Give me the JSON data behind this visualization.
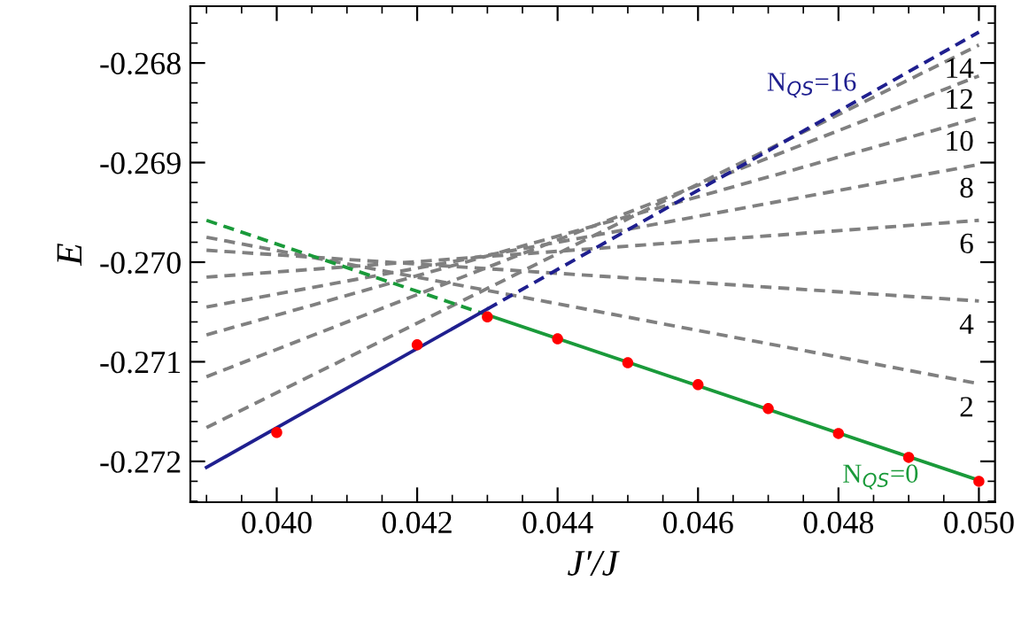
{
  "chart_data": {
    "type": "line",
    "xlabel": "J′/J",
    "ylabel": "E",
    "xlim": [
      0.03877,
      0.05023
    ],
    "ylim": [
      -0.27241,
      -0.26743
    ],
    "xticks": [
      {
        "value": 0.04,
        "label": "0.040"
      },
      {
        "value": 0.042,
        "label": "0.042"
      },
      {
        "value": 0.044,
        "label": "0.044"
      },
      {
        "value": 0.046,
        "label": "0.046"
      },
      {
        "value": 0.048,
        "label": "0.048"
      },
      {
        "value": 0.05,
        "label": "0.050"
      }
    ],
    "yticks": [
      {
        "value": -0.268,
        "label": "-0.268"
      },
      {
        "value": -0.269,
        "label": "-0.269"
      },
      {
        "value": -0.27,
        "label": "-0.270"
      },
      {
        "value": -0.271,
        "label": "-0.271"
      },
      {
        "value": -0.272,
        "label": "-0.272"
      }
    ],
    "grid": false,
    "legend": false,
    "series": [
      {
        "name": "14",
        "color": "#808080",
        "line_style": "dashed",
        "x": [
          0.039,
          0.05
        ],
        "values": [
          -0.27166,
          -0.26782
        ]
      },
      {
        "name": "12",
        "color": "#808080",
        "line_style": "dashed",
        "x": [
          0.039,
          0.05
        ],
        "values": [
          -0.27115,
          -0.26813
        ]
      },
      {
        "name": "10",
        "color": "#808080",
        "line_style": "dashed",
        "x": [
          0.039,
          0.05
        ],
        "values": [
          -0.27073,
          -0.26855
        ]
      },
      {
        "name": "8",
        "color": "#808080",
        "line_style": "dashed",
        "x": [
          0.039,
          0.05
        ],
        "values": [
          -0.27045,
          -0.26902
        ]
      },
      {
        "name": "6",
        "color": "#808080",
        "line_style": "dashed",
        "x": [
          0.039,
          0.05
        ],
        "values": [
          -0.27015,
          -0.26958
        ]
      },
      {
        "name": "4",
        "color": "#808080",
        "line_style": "dashed",
        "x": [
          0.039,
          0.05
        ],
        "values": [
          -0.26988,
          -0.27039
        ]
      },
      {
        "name": "2",
        "color": "#808080",
        "line_style": "dashed",
        "x": [
          0.039,
          0.05
        ],
        "values": [
          -0.26975,
          -0.27122
        ]
      },
      {
        "color": "#1a9a3a",
        "line_style": "dashed",
        "x": [
          0.039,
          0.043
        ],
        "values": [
          -0.26958,
          -0.27053
        ]
      },
      {
        "name": "N$_{QS}$=0",
        "color": "#1a9a3a",
        "line_style": "solid",
        "x": [
          0.043,
          0.05
        ],
        "values": [
          -0.27053,
          -0.27219
        ]
      },
      {
        "color": "#1f1f8f",
        "line_style": "solid",
        "x": [
          0.039,
          0.043
        ],
        "values": [
          -0.27206,
          -0.27047
        ]
      },
      {
        "name": "N$_{QS}$=16",
        "color": "#1f1f8f",
        "line_style": "dashed",
        "x": [
          0.043,
          0.05
        ],
        "values": [
          -0.27047,
          -0.26769
        ]
      },
      {
        "type": "scatter",
        "color": "#ff0000",
        "marker": "circle",
        "x": [
          0.04,
          0.042,
          0.043,
          0.044,
          0.045,
          0.046,
          0.047,
          0.048,
          0.049,
          0.05
        ],
        "values": [
          -0.27171,
          -0.27083,
          -0.27055,
          -0.27077,
          -0.27101,
          -0.27123,
          -0.27147,
          -0.27172,
          -0.27196,
          -0.2722
        ]
      }
    ]
  }
}
